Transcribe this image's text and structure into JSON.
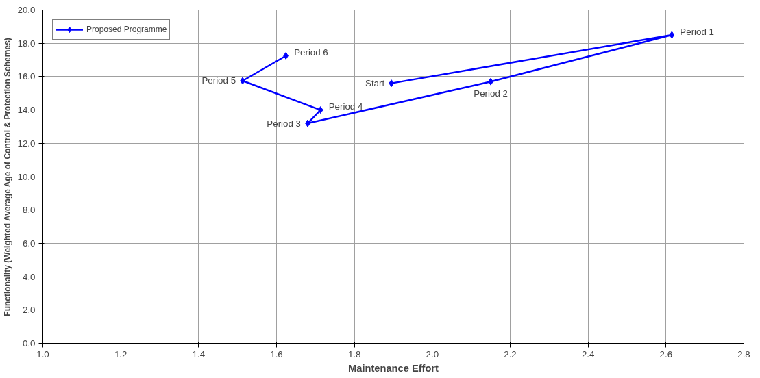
{
  "chart_data": {
    "type": "line",
    "xlabel": "Maintenance Effort",
    "ylabel": "Functionality (Weighted Average Age of Control & Protection Schemes)",
    "series": [
      {
        "name": "Proposed Programme",
        "color": "#0000ff",
        "x": [
          1.895,
          2.615,
          2.15,
          1.68,
          1.713,
          1.513,
          1.624
        ],
        "values": [
          15.6,
          18.5,
          15.7,
          13.2,
          14.0,
          15.75,
          17.25
        ]
      }
    ],
    "annotations": [
      {
        "text": "Start",
        "x": 1.895,
        "y": 15.6
      },
      {
        "text": "Period 1",
        "x": 2.615,
        "y": 18.5
      },
      {
        "text": "Period 2",
        "x": 2.15,
        "y": 15.7
      },
      {
        "text": "Period 3",
        "x": 1.68,
        "y": 13.2
      },
      {
        "text": "Period 4",
        "x": 1.713,
        "y": 14.0
      },
      {
        "text": "Period 5",
        "x": 1.513,
        "y": 15.75
      },
      {
        "text": "Period 6",
        "x": 1.624,
        "y": 17.25
      }
    ],
    "xlim": [
      1.0,
      2.8
    ],
    "xticks": [
      {
        "value": 1.0,
        "label": "1.0"
      },
      {
        "value": 1.2,
        "label": "1.2"
      },
      {
        "value": 1.4,
        "label": "1.4"
      },
      {
        "value": 1.6,
        "label": "1.6"
      },
      {
        "value": 1.8,
        "label": "1.8"
      },
      {
        "value": 2.0,
        "label": "2.0"
      },
      {
        "value": 2.2,
        "label": "2.2"
      },
      {
        "value": 2.4,
        "label": "2.4"
      },
      {
        "value": 2.6,
        "label": "2.6"
      },
      {
        "value": 2.8,
        "label": "2.8"
      }
    ],
    "ylim": [
      0,
      20
    ],
    "yticks": [
      {
        "value": 0,
        "label": "0.0"
      },
      {
        "value": 2,
        "label": "2.0"
      },
      {
        "value": 4,
        "label": "4.0"
      },
      {
        "value": 6,
        "label": "6.0"
      },
      {
        "value": 8,
        "label": "8.0"
      },
      {
        "value": 10,
        "label": "10.0"
      },
      {
        "value": 12,
        "label": "12.0"
      },
      {
        "value": 14,
        "label": "14.0"
      },
      {
        "value": 16,
        "label": "16.0"
      },
      {
        "value": 18,
        "label": "18.0"
      },
      {
        "value": 20,
        "label": "20.0"
      }
    ],
    "grid": true,
    "legend": "top left",
    "marker": "diamond",
    "line_style": "solid"
  }
}
